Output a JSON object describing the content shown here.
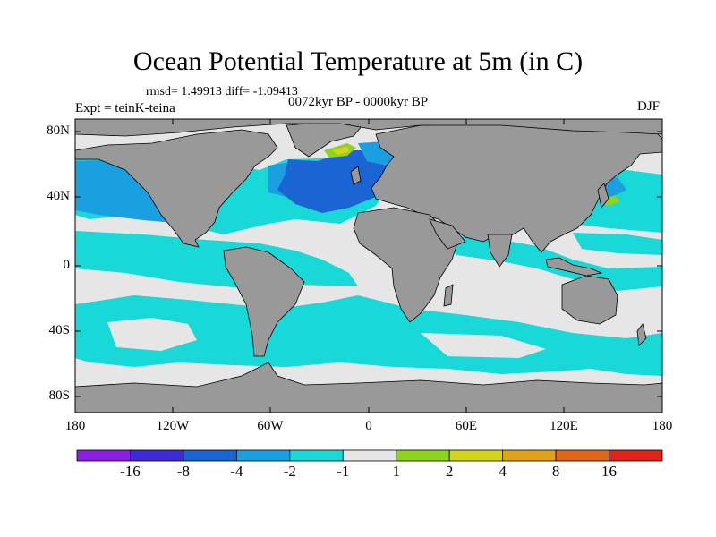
{
  "title": "Ocean Potential Temperature at 5m (in C)",
  "stats": "rmsd= 1.49913  diff= -1.09413",
  "experiment": "Expt = teinK-teina",
  "period": "0072kyr BP - 0000kyr BP",
  "season": "DJF",
  "lat_ticks": [
    "80N",
    "40N",
    "0",
    "40S",
    "80S"
  ],
  "lon_ticks": [
    "180",
    "120W",
    "60W",
    "0",
    "60E",
    "120E",
    "180"
  ],
  "colorbar": {
    "colors": [
      "#8a1fe0",
      "#3b2cd8",
      "#1a64d4",
      "#1aa0e0",
      "#19d8d8",
      "#e6e6e6",
      "#8ed41a",
      "#d4d41a",
      "#e0a21a",
      "#e0661a",
      "#e0241a"
    ],
    "labels": [
      "-16",
      "-8",
      "-4",
      "-2",
      "-1",
      "1",
      "2",
      "4",
      "8",
      "16"
    ]
  },
  "colors": {
    "land": "#999999",
    "ice": "#e6e6e6",
    "cyan": "#19d8d8",
    "sky": "#1aa0e0",
    "blue": "#1a64d4",
    "green": "#8ed41a",
    "yellow": "#d4d41a"
  }
}
